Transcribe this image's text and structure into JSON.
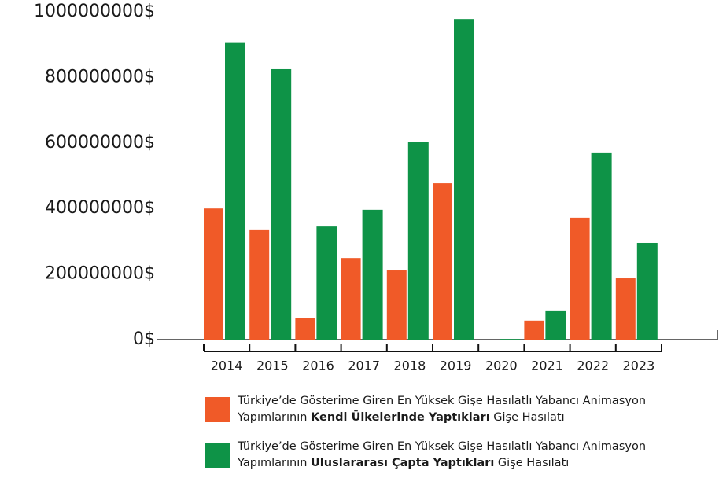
{
  "chart_data": {
    "type": "bar",
    "categories": [
      "2014",
      "2015",
      "2016",
      "2017",
      "2018",
      "2019",
      "2020",
      "2021",
      "2022",
      "2023"
    ],
    "series": [
      {
        "name": [
          "Türkiye’de Gösterime Giren En Yüksek Gişe Hasılatlı Yabancı Animasyon Yapımlarının ",
          "Kendi Ülkelerinde Yaptıkları",
          " Gişe Hasılatı"
        ],
        "color": "#f05a28",
        "values": [
          400000000,
          336000000,
          65000000,
          249000000,
          211000000,
          477000000,
          0,
          58000000,
          372000000,
          187000000
        ]
      },
      {
        "name": [
          "Türkiye’de Gösterime Giren En Yüksek Gişe Hasılatlı Yabancı Animasyon Yapımlarının ",
          "Uluslararası Çapta Yaptıkları",
          " Gişe Hasılatı"
        ],
        "color": "#0e9347",
        "values": [
          905000000,
          825000000,
          345000000,
          396000000,
          604000000,
          978000000,
          2000000,
          89000000,
          571000000,
          295000000
        ]
      }
    ],
    "ylim": [
      0,
      1000000000
    ],
    "yticks": [
      {
        "value": 0,
        "label": "0$"
      },
      {
        "value": 200000000,
        "label": "200000000$"
      },
      {
        "value": 400000000,
        "label": "400000000$"
      },
      {
        "value": 600000000,
        "label": "600000000$"
      },
      {
        "value": 800000000,
        "label": "800000000$"
      },
      {
        "value": 1000000000,
        "label": "1000000000$"
      }
    ],
    "grid": false
  }
}
